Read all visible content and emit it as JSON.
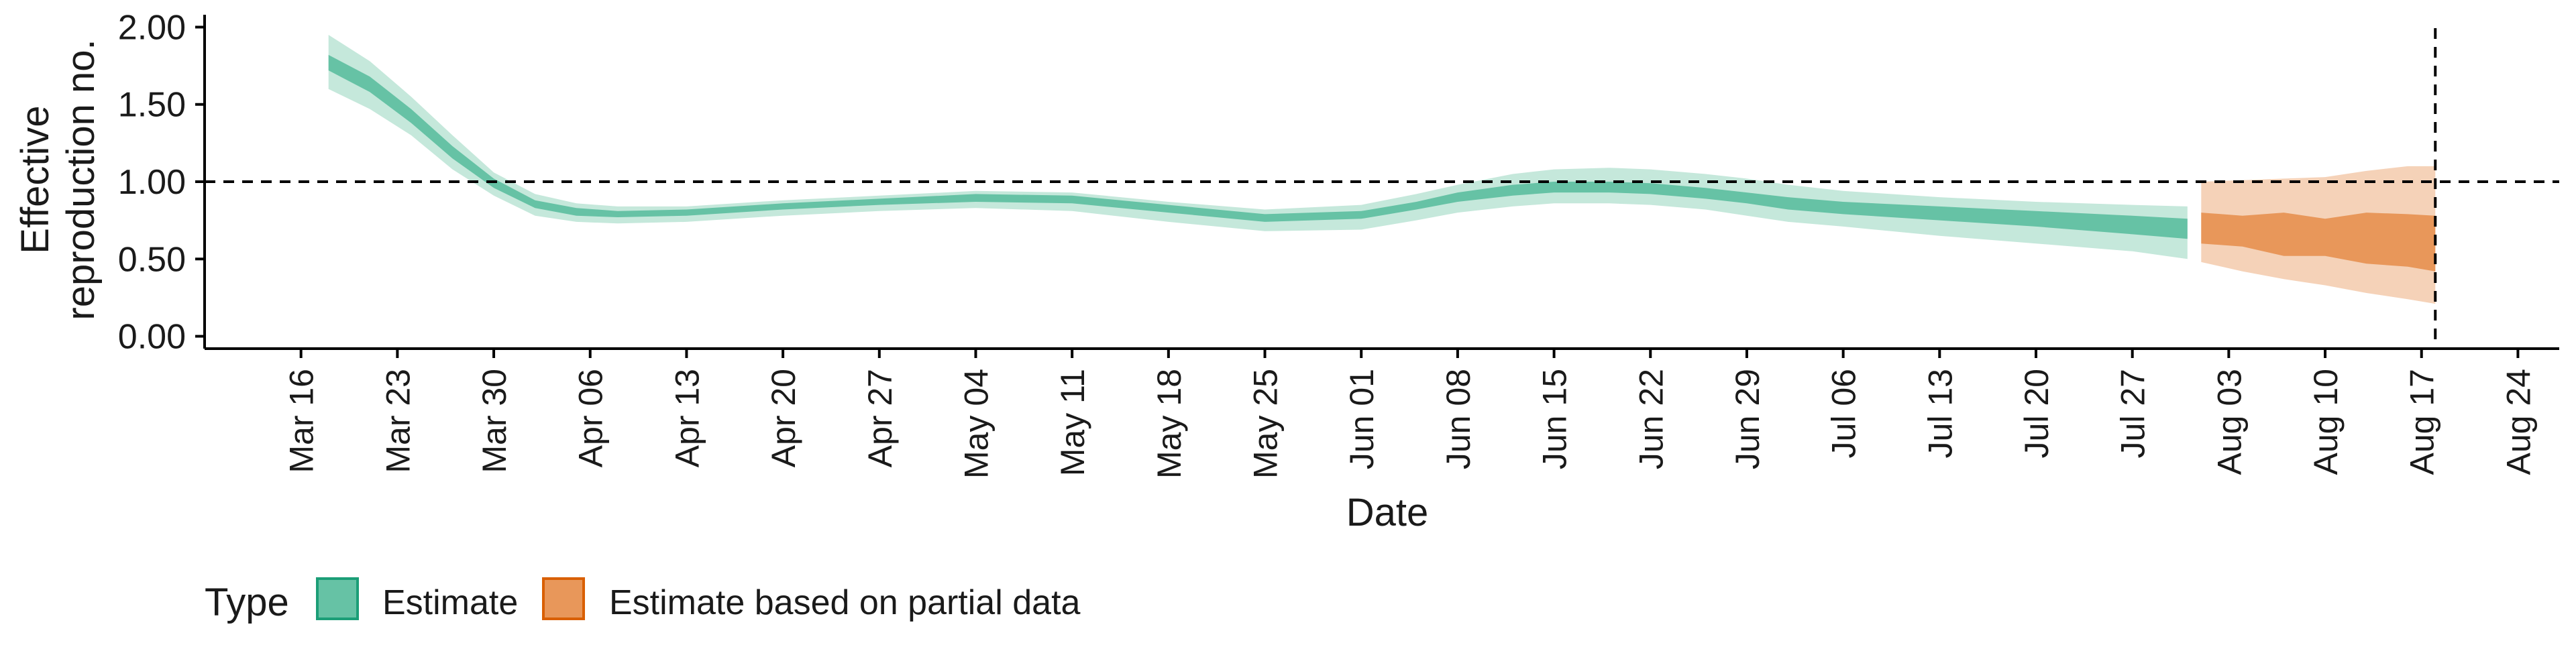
{
  "chart_data": {
    "type": "area",
    "xlabel": "Date",
    "ylabel_lines": [
      "Effective",
      "reproduction no."
    ],
    "x_ticks": [
      "Mar 16",
      "Mar 23",
      "Mar 30",
      "Apr 06",
      "Apr 13",
      "Apr 20",
      "Apr 27",
      "May 04",
      "May 11",
      "May 18",
      "May 25",
      "Jun 01",
      "Jun 08",
      "Jun 15",
      "Jun 22",
      "Jun 29",
      "Jul 06",
      "Jul 13",
      "Jul 20",
      "Jul 27",
      "Aug 03",
      "Aug 10",
      "Aug 17",
      "Aug 24"
    ],
    "x_tick_dates": [
      "2020-03-16",
      "2020-03-23",
      "2020-03-30",
      "2020-04-06",
      "2020-04-13",
      "2020-04-20",
      "2020-04-27",
      "2020-05-04",
      "2020-05-11",
      "2020-05-18",
      "2020-05-25",
      "2020-06-01",
      "2020-06-08",
      "2020-06-15",
      "2020-06-22",
      "2020-06-29",
      "2020-07-06",
      "2020-07-13",
      "2020-07-20",
      "2020-07-27",
      "2020-08-03",
      "2020-08-10",
      "2020-08-17",
      "2020-08-24"
    ],
    "x_range": [
      "2020-03-09",
      "2020-08-27"
    ],
    "y_ticks": [
      "0.00",
      "0.50",
      "1.00",
      "1.50",
      "2.00"
    ],
    "y_tick_values": [
      0,
      0.5,
      1.0,
      1.5,
      2.0
    ],
    "ylim": [
      -0.08,
      2.08
    ],
    "reference_line_y": 1.0,
    "reference_line_x": "2020-08-18",
    "grid": false,
    "legend": {
      "position": "bottom-left",
      "title": "Type",
      "items": [
        {
          "label": "Estimate",
          "fill": "#66c2a5",
          "border": "#1b9e77"
        },
        {
          "label": "Estimate based on partial data",
          "fill": "#e8975a",
          "border": "#d95f02"
        }
      ]
    },
    "series": [
      {
        "name": "Estimate",
        "colors": {
          "inner": "#66c2a5",
          "outer": "#c5e8db"
        },
        "x": [
          "2020-03-18",
          "2020-03-21",
          "2020-03-24",
          "2020-03-27",
          "2020-03-30",
          "2020-04-02",
          "2020-04-05",
          "2020-04-08",
          "2020-04-13",
          "2020-04-20",
          "2020-04-27",
          "2020-05-04",
          "2020-05-11",
          "2020-05-18",
          "2020-05-25",
          "2020-06-01",
          "2020-06-05",
          "2020-06-08",
          "2020-06-12",
          "2020-06-15",
          "2020-06-19",
          "2020-06-22",
          "2020-06-26",
          "2020-06-29",
          "2020-07-02",
          "2020-07-06",
          "2020-07-13",
          "2020-07-20",
          "2020-07-27",
          "2020-07-31"
        ],
        "outer_upper": [
          1.95,
          1.78,
          1.55,
          1.3,
          1.06,
          0.92,
          0.86,
          0.84,
          0.84,
          0.88,
          0.91,
          0.94,
          0.93,
          0.87,
          0.82,
          0.85,
          0.92,
          0.98,
          1.05,
          1.08,
          1.09,
          1.08,
          1.05,
          1.02,
          0.98,
          0.94,
          0.9,
          0.87,
          0.85,
          0.84
        ],
        "inner_upper": [
          1.82,
          1.68,
          1.47,
          1.23,
          1.02,
          0.88,
          0.83,
          0.81,
          0.82,
          0.86,
          0.89,
          0.92,
          0.91,
          0.85,
          0.79,
          0.81,
          0.87,
          0.93,
          0.98,
          1.0,
          1.0,
          0.99,
          0.96,
          0.93,
          0.9,
          0.87,
          0.84,
          0.81,
          0.78,
          0.76
        ],
        "inner_lower": [
          1.72,
          1.58,
          1.38,
          1.15,
          0.96,
          0.83,
          0.78,
          0.77,
          0.78,
          0.82,
          0.85,
          0.87,
          0.86,
          0.8,
          0.74,
          0.76,
          0.82,
          0.87,
          0.91,
          0.93,
          0.93,
          0.92,
          0.89,
          0.86,
          0.82,
          0.79,
          0.75,
          0.71,
          0.66,
          0.63
        ],
        "outer_lower": [
          1.6,
          1.47,
          1.3,
          1.08,
          0.91,
          0.78,
          0.74,
          0.73,
          0.74,
          0.78,
          0.81,
          0.83,
          0.81,
          0.74,
          0.68,
          0.69,
          0.75,
          0.8,
          0.84,
          0.86,
          0.86,
          0.85,
          0.82,
          0.78,
          0.74,
          0.71,
          0.65,
          0.6,
          0.55,
          0.5
        ]
      },
      {
        "name": "Estimate based on partial data",
        "colors": {
          "inner": "#e8975a",
          "outer": "#f5d2b8"
        },
        "x": [
          "2020-08-01",
          "2020-08-04",
          "2020-08-07",
          "2020-08-10",
          "2020-08-13",
          "2020-08-16",
          "2020-08-18"
        ],
        "outer_upper": [
          1.0,
          1.01,
          1.02,
          1.03,
          1.07,
          1.1,
          1.1
        ],
        "inner_upper": [
          0.8,
          0.78,
          0.8,
          0.76,
          0.8,
          0.79,
          0.78
        ],
        "inner_lower": [
          0.6,
          0.58,
          0.52,
          0.52,
          0.47,
          0.45,
          0.42
        ],
        "outer_lower": [
          0.48,
          0.42,
          0.37,
          0.33,
          0.28,
          0.24,
          0.21
        ]
      }
    ]
  }
}
